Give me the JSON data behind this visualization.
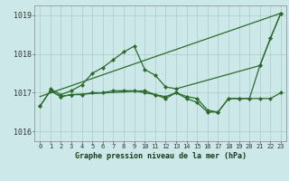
{
  "background_color": "#cce8e8",
  "grid_color": "#aacccc",
  "line_color": "#2d6a2d",
  "title": "Graphe pression niveau de la mer (hPa)",
  "xlim": [
    -0.5,
    23.5
  ],
  "ylim": [
    1015.75,
    1019.25
  ],
  "yticks": [
    1016,
    1017,
    1018,
    1019
  ],
  "xtick_labels": [
    "0",
    "1",
    "2",
    "3",
    "4",
    "5",
    "6",
    "7",
    "8",
    "9",
    "10",
    "11",
    "12",
    "13",
    "14",
    "15",
    "16",
    "17",
    "18",
    "19",
    "20",
    "21",
    "22",
    "23"
  ],
  "xticks": [
    0,
    1,
    2,
    3,
    4,
    5,
    6,
    7,
    8,
    9,
    10,
    11,
    12,
    13,
    14,
    15,
    16,
    17,
    18,
    19,
    20,
    21,
    22,
    23
  ],
  "series_straight": {
    "x": [
      0,
      23
    ],
    "y": [
      1016.9,
      1019.05
    ]
  },
  "series_upper": {
    "x": [
      1,
      2,
      3,
      4,
      5,
      6,
      7,
      8,
      9,
      10,
      11,
      12,
      13,
      21,
      22,
      23
    ],
    "y": [
      1017.1,
      1016.95,
      1017.05,
      1017.2,
      1017.5,
      1017.65,
      1017.85,
      1018.05,
      1018.2,
      1017.6,
      1017.45,
      1017.15,
      1017.1,
      1017.7,
      1018.4,
      1019.05
    ]
  },
  "series_lower": {
    "x": [
      0,
      1,
      2,
      3,
      4,
      5,
      6,
      7,
      8,
      9,
      10,
      11,
      12,
      13,
      14,
      15,
      16,
      17,
      18,
      19,
      20,
      21,
      22,
      23
    ],
    "y": [
      1016.65,
      1017.05,
      1016.9,
      1016.95,
      1016.95,
      1017.0,
      1017.0,
      1017.05,
      1017.05,
      1017.05,
      1017.0,
      1016.95,
      1016.9,
      1017.0,
      1016.9,
      1016.85,
      1016.55,
      1016.5,
      1016.85,
      1016.85,
      1016.85,
      1016.85,
      1016.85,
      1017.0
    ]
  },
  "series_dip": {
    "x": [
      0,
      1,
      2,
      3,
      10,
      11,
      12,
      13,
      14,
      15,
      16,
      17,
      18,
      19,
      20,
      21,
      22,
      23
    ],
    "y": [
      1016.65,
      1017.05,
      1016.9,
      1016.95,
      1017.05,
      1016.95,
      1016.85,
      1017.0,
      1016.85,
      1016.75,
      1016.5,
      1016.5,
      1016.85,
      1016.85,
      1016.85,
      1017.7,
      1018.4,
      1019.05
    ]
  }
}
